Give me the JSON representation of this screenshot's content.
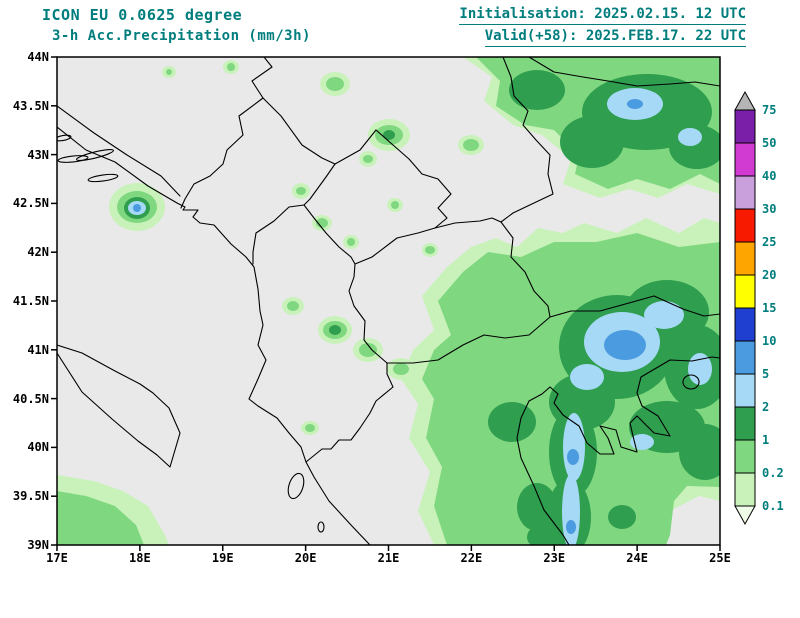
{
  "header": {
    "model_line": "ICON EU 0.0625 degree",
    "product_line": "3-h Acc.Precipitation (mm/3h)",
    "init_line": "Initialisation: 2025.02.15. 12 UTC",
    "valid_line": "Valid(+58): 2025.FEB.17. 22 UTC"
  },
  "colors": {
    "accent": "#007d7d",
    "land_background": "#e9e9e9",
    "border_line": "#000000"
  },
  "chart_data": {
    "type": "heatmap",
    "title": "ICON EU 0.0625 degree — 3-h Acc.Precipitation (mm/3h)",
    "initialisation": "2025.02.15. 12 UTC",
    "valid": "2025.FEB.17. 22 UTC",
    "lead_hours": 58,
    "unit": "mm/3h",
    "x_axis": {
      "ticks": [
        "17E",
        "18E",
        "19E",
        "20E",
        "21E",
        "22E",
        "23E",
        "24E",
        "25E"
      ],
      "range_deg_east": [
        17,
        25
      ]
    },
    "y_axis": {
      "ticks": [
        "44N",
        "43.5N",
        "43N",
        "42.5N",
        "42N",
        "41.5N",
        "41N",
        "40.5N",
        "40N",
        "39.5N",
        "39N"
      ],
      "range_deg_north": [
        39,
        44
      ]
    },
    "colorbar": {
      "boundary_labels_top_to_bottom": [
        "75",
        "50",
        "40",
        "30",
        "25",
        "20",
        "15",
        "10",
        "5",
        "2",
        "1",
        "0.2",
        "0.1"
      ],
      "levels_mm_low_to_high": [
        0.1,
        0.2,
        1,
        2,
        5,
        10,
        15,
        20,
        25,
        30,
        40,
        50,
        75
      ],
      "cell_colors_top_to_bottom": [
        "#b5b5b5",
        "#7a1fa8",
        "#d23bd2",
        "#c9a0dc",
        "#f71a00",
        "#ffa500",
        "#ffff00",
        "#1f3fd0",
        "#4b9be0",
        "#a6d9f5",
        "#2f9e4f",
        "#7fd87f",
        "#c9f2bb",
        "#eefce8"
      ]
    },
    "precip_regions": [
      {
        "area": "NE corner 22.0-25.0E / 42.5-44.0N",
        "range_mm": "0.1-2",
        "maxima": "2-5 mm cores, 5-10 mm spot near 24.1E 43.5N"
      },
      {
        "area": "Eastern half 21.3-25.0E / 39.0-42.4N",
        "range_mm": "0.1-2",
        "maxima": "2-5 mm patches, 5-10 mm maximum near 23.85E 41.05N, 2-5 mm streak along 23.2E from 39.0N to 40.3N"
      },
      {
        "area": "Adriatic coastal cell near 18.0E 42.45N",
        "range_mm": "0.2-10",
        "maxima": "small intense cell with 5-10 mm core"
      },
      {
        "area": "Scattered interior cells 19.5-21.5E / 40.2-43.8N",
        "range_mm": "0.1-1",
        "maxima": "isolated 1-2 mm dots"
      },
      {
        "area": "SW corner 17.0-18.4E / 39.0-39.7N",
        "range_mm": "0.1-1",
        "maxima": ""
      }
    ]
  }
}
